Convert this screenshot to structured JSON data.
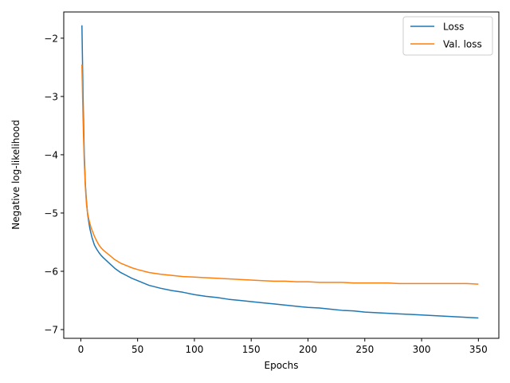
{
  "chart_data": {
    "type": "line",
    "xlabel": "Epochs",
    "ylabel": "Negative log-likelihood",
    "xlim": [
      -15,
      368
    ],
    "ylim": [
      -7.15,
      -1.55
    ],
    "xticks": [
      0,
      50,
      100,
      150,
      200,
      250,
      300,
      350
    ],
    "yticks": [
      -7,
      -6,
      -5,
      -4,
      -3,
      -2
    ],
    "ytick_labels": [
      "−7",
      "−6",
      "−5",
      "−4",
      "−3",
      "−2"
    ],
    "grid": false,
    "legend_position": "top-right",
    "series": [
      {
        "name": "Loss",
        "color": "#1f77b4",
        "x": [
          1,
          2,
          3,
          4,
          5,
          6,
          7,
          8,
          9,
          10,
          12,
          14,
          16,
          18,
          20,
          25,
          30,
          35,
          40,
          45,
          50,
          60,
          70,
          80,
          90,
          100,
          110,
          120,
          130,
          140,
          150,
          160,
          170,
          180,
          190,
          200,
          210,
          220,
          230,
          240,
          250,
          260,
          270,
          280,
          290,
          300,
          310,
          320,
          330,
          340,
          350
        ],
        "values": [
          -1.78,
          -3.0,
          -3.95,
          -4.5,
          -4.8,
          -5.02,
          -5.15,
          -5.27,
          -5.35,
          -5.43,
          -5.55,
          -5.62,
          -5.68,
          -5.73,
          -5.77,
          -5.86,
          -5.95,
          -6.02,
          -6.07,
          -6.12,
          -6.16,
          -6.24,
          -6.29,
          -6.33,
          -6.36,
          -6.4,
          -6.43,
          -6.45,
          -6.48,
          -6.5,
          -6.52,
          -6.54,
          -6.56,
          -6.58,
          -6.6,
          -6.62,
          -6.63,
          -6.65,
          -6.67,
          -6.68,
          -6.7,
          -6.71,
          -6.72,
          -6.73,
          -6.74,
          -6.75,
          -6.76,
          -6.77,
          -6.78,
          -6.79,
          -6.8
        ]
      },
      {
        "name": "Val. loss",
        "color": "#ff7f0e",
        "x": [
          1,
          2,
          3,
          4,
          5,
          6,
          7,
          8,
          9,
          10,
          12,
          14,
          16,
          18,
          20,
          25,
          30,
          35,
          40,
          45,
          50,
          60,
          70,
          80,
          90,
          100,
          110,
          120,
          130,
          140,
          150,
          160,
          170,
          180,
          190,
          200,
          210,
          220,
          230,
          240,
          250,
          260,
          270,
          280,
          290,
          300,
          310,
          320,
          330,
          340,
          350
        ],
        "values": [
          -2.45,
          -3.4,
          -4.1,
          -4.55,
          -4.85,
          -5.0,
          -5.1,
          -5.18,
          -5.25,
          -5.3,
          -5.4,
          -5.48,
          -5.55,
          -5.6,
          -5.64,
          -5.72,
          -5.8,
          -5.86,
          -5.9,
          -5.94,
          -5.97,
          -6.02,
          -6.05,
          -6.07,
          -6.09,
          -6.1,
          -6.11,
          -6.12,
          -6.13,
          -6.14,
          -6.15,
          -6.16,
          -6.17,
          -6.17,
          -6.18,
          -6.18,
          -6.19,
          -6.19,
          -6.19,
          -6.2,
          -6.2,
          -6.2,
          -6.2,
          -6.21,
          -6.21,
          -6.21,
          -6.21,
          -6.21,
          -6.21,
          -6.21,
          -6.22
        ]
      }
    ]
  }
}
